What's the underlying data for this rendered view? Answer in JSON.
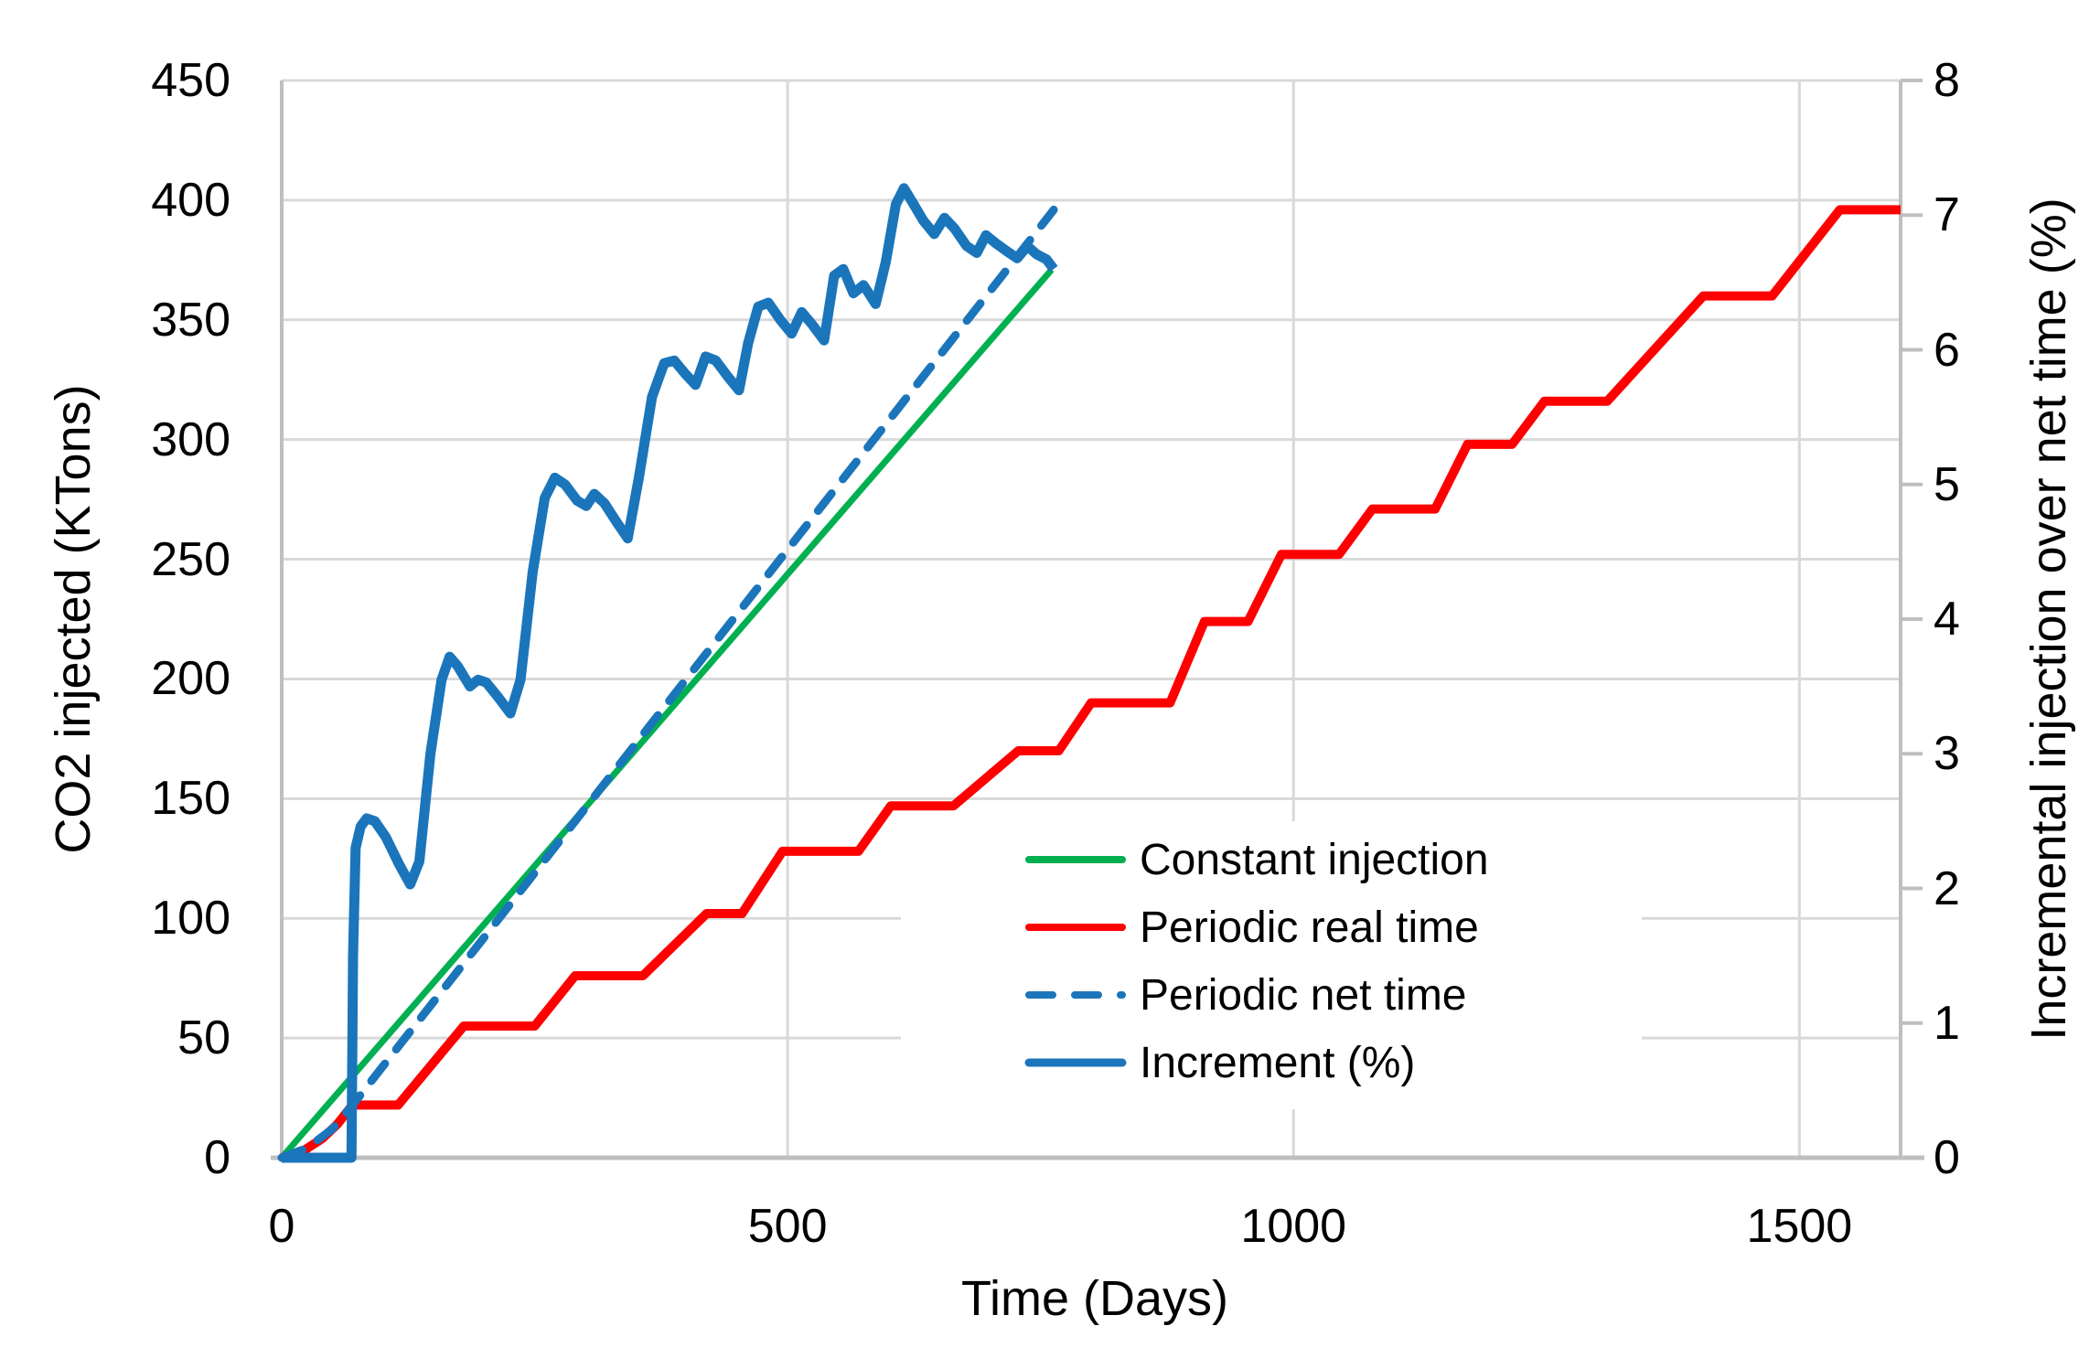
{
  "figure": {
    "background": "#FFFFFF",
    "text_color": "#000000",
    "grid_color": "#D9D9D9",
    "axis_color": "#BFBFBF"
  },
  "chart_data": {
    "type": "line",
    "title": "",
    "xlabel": "Time (Days)",
    "ylabel_left": "CO2 injected (KTons)",
    "ylabel_right": "Incremental injection over net time (%)",
    "xlim": [
      0,
      1600
    ],
    "ylim_left": [
      0,
      450
    ],
    "ylim_right": [
      0,
      8
    ],
    "xticks": [
      0,
      500,
      1000,
      1500
    ],
    "yticks_left": [
      0,
      50,
      100,
      150,
      200,
      250,
      300,
      350,
      400,
      450
    ],
    "yticks_right": [
      0,
      1,
      2,
      3,
      4,
      5,
      6,
      7,
      8
    ],
    "grid": true,
    "legend_position": "inside-bottom-right",
    "series": [
      {
        "key": "constant-injection",
        "name": "Constant injection",
        "axis": "left",
        "color": "#00B050",
        "dash": false,
        "width": 7,
        "points": [
          [
            0,
            0
          ],
          [
            761,
            371
          ]
        ]
      },
      {
        "key": "periodic-real-time",
        "name": "Periodic real time",
        "axis": "left",
        "color": "#FF0000",
        "dash": false,
        "width": 10,
        "points": [
          [
            0,
            0
          ],
          [
            20,
            2.5
          ],
          [
            40,
            8
          ],
          [
            55,
            14
          ],
          [
            70,
            22
          ],
          [
            115,
            22
          ],
          [
            180,
            55
          ],
          [
            250,
            55
          ],
          [
            290,
            76
          ],
          [
            357,
            76
          ],
          [
            420,
            102
          ],
          [
            455,
            102
          ],
          [
            495,
            128
          ],
          [
            570,
            128
          ],
          [
            602,
            147
          ],
          [
            664,
            147
          ],
          [
            728,
            170
          ],
          [
            768,
            170
          ],
          [
            800,
            190
          ],
          [
            878,
            190
          ],
          [
            912,
            224
          ],
          [
            955,
            224
          ],
          [
            988,
            252
          ],
          [
            1045,
            252
          ],
          [
            1078,
            271
          ],
          [
            1140,
            271
          ],
          [
            1172,
            298
          ],
          [
            1216,
            298
          ],
          [
            1248,
            316
          ],
          [
            1310,
            316
          ],
          [
            1405,
            360
          ],
          [
            1473,
            360
          ],
          [
            1540,
            396
          ],
          [
            1600,
            396
          ]
        ]
      },
      {
        "key": "periodic-net-time",
        "name": "Periodic net time",
        "axis": "left",
        "color": "#1B75BB",
        "dash": true,
        "width": 9,
        "points": [
          [
            0,
            0
          ],
          [
            25,
            4
          ],
          [
            50,
            12
          ],
          [
            70,
            22
          ],
          [
            120,
            49
          ],
          [
            200,
            92
          ],
          [
            300,
            146
          ],
          [
            400,
            200
          ],
          [
            500,
            254
          ],
          [
            600,
            308
          ],
          [
            700,
            362
          ],
          [
            763,
            396
          ]
        ]
      },
      {
        "key": "increment-pct",
        "name": "Increment (%)",
        "axis": "right",
        "color": "#1B75BB",
        "dash": false,
        "width": 11,
        "points": [
          [
            0,
            0
          ],
          [
            69,
            0
          ],
          [
            70.5,
            1.5
          ],
          [
            73,
            2.3
          ],
          [
            78,
            2.46
          ],
          [
            84,
            2.52
          ],
          [
            92,
            2.5
          ],
          [
            103,
            2.38
          ],
          [
            116,
            2.18
          ],
          [
            127,
            2.03
          ],
          [
            136,
            2.2
          ],
          [
            147,
            3.0
          ],
          [
            158,
            3.55
          ],
          [
            166,
            3.72
          ],
          [
            174,
            3.65
          ],
          [
            186,
            3.5
          ],
          [
            194,
            3.55
          ],
          [
            202,
            3.53
          ],
          [
            214,
            3.42
          ],
          [
            226,
            3.3
          ],
          [
            236,
            3.55
          ],
          [
            248,
            4.35
          ],
          [
            260,
            4.9
          ],
          [
            270,
            5.05
          ],
          [
            280,
            5.0
          ],
          [
            292,
            4.88
          ],
          [
            301,
            4.84
          ],
          [
            309,
            4.93
          ],
          [
            319,
            4.86
          ],
          [
            331,
            4.72
          ],
          [
            342,
            4.6
          ],
          [
            353,
            5.05
          ],
          [
            366,
            5.65
          ],
          [
            378,
            5.9
          ],
          [
            388,
            5.92
          ],
          [
            399,
            5.82
          ],
          [
            409,
            5.74
          ],
          [
            419,
            5.95
          ],
          [
            429,
            5.92
          ],
          [
            441,
            5.8
          ],
          [
            452,
            5.7
          ],
          [
            461,
            6.05
          ],
          [
            471,
            6.32
          ],
          [
            481,
            6.35
          ],
          [
            493,
            6.22
          ],
          [
            504,
            6.12
          ],
          [
            514,
            6.28
          ],
          [
            524,
            6.19
          ],
          [
            536,
            6.07
          ],
          [
            546,
            6.55
          ],
          [
            555,
            6.6
          ],
          [
            565,
            6.42
          ],
          [
            575,
            6.48
          ],
          [
            587,
            6.34
          ],
          [
            597,
            6.65
          ],
          [
            607,
            7.08
          ],
          [
            615,
            7.2
          ],
          [
            623,
            7.1
          ],
          [
            634,
            6.96
          ],
          [
            645,
            6.86
          ],
          [
            655,
            6.98
          ],
          [
            665,
            6.9
          ],
          [
            677,
            6.77
          ],
          [
            687,
            6.72
          ],
          [
            696,
            6.85
          ],
          [
            706,
            6.79
          ],
          [
            717,
            6.73
          ],
          [
            727,
            6.68
          ],
          [
            737,
            6.77
          ],
          [
            746,
            6.71
          ],
          [
            756,
            6.67
          ],
          [
            763,
            6.6
          ]
        ]
      }
    ]
  }
}
